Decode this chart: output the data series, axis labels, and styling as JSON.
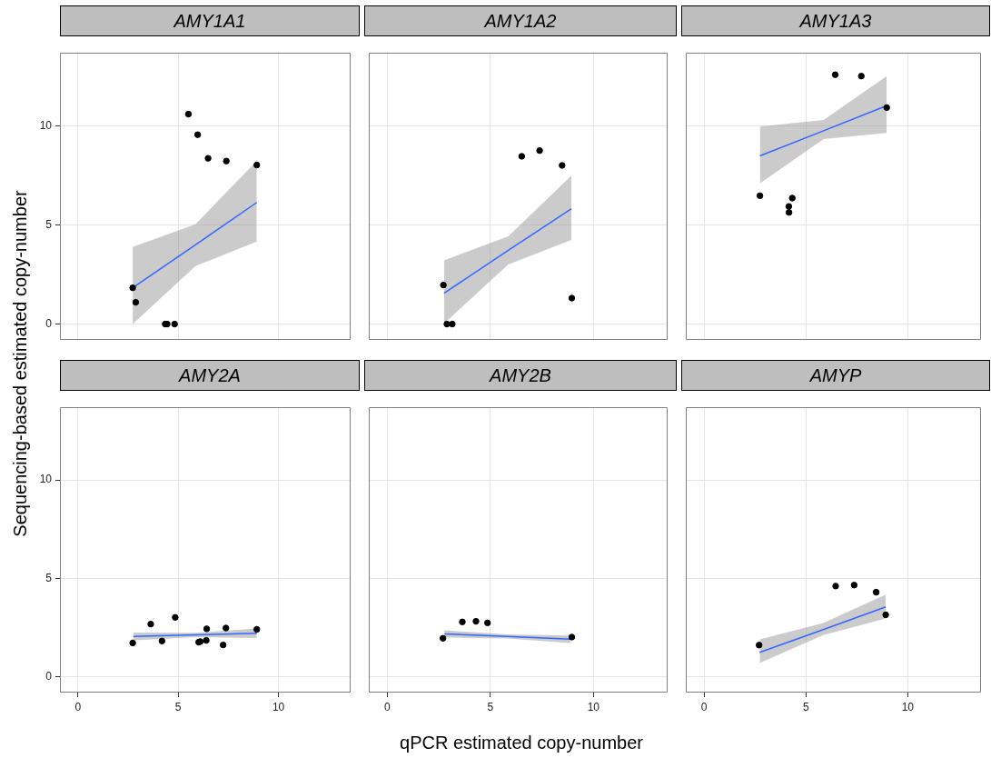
{
  "chart_data": [
    {
      "type": "scatter",
      "title": "AMY1A1",
      "ylabel": "Sequencing-based estimated copy-number",
      "xlim": [
        -0.9,
        13.6
      ],
      "ylim": [
        -0.8,
        13.7
      ],
      "xticks": [
        0,
        5,
        10
      ],
      "yticks": [
        0,
        5,
        10
      ],
      "grid": true,
      "marker": "circle",
      "tick_labels": "y",
      "series": [
        {
          "type": "scatter",
          "color": "#000000",
          "x": [
            5.51,
            5.97,
            6.49,
            7.4,
            8.92,
            2.73,
            2.88,
            4.35,
            4.45,
            4.82
          ],
          "values": [
            10.6,
            9.56,
            8.37,
            8.23,
            8.03,
            1.83,
            1.1,
            0,
            0,
            0
          ]
        },
        {
          "type": "line",
          "marker": "none",
          "color": "#3366ff",
          "x": [
            2.73,
            5.86,
            8.92
          ],
          "values": [
            1.83,
            4.0,
            6.14
          ],
          "lower": [
            0,
            2.93,
            4.17
          ],
          "upper": [
            3.89,
            5.04,
            8.24
          ]
        }
      ]
    },
    {
      "type": "scatter",
      "title": "AMY1A2",
      "xlim": [
        -0.9,
        13.6
      ],
      "ylim": [
        -0.8,
        13.7
      ],
      "xticks": [
        0,
        5,
        10
      ],
      "yticks": [
        0,
        5,
        10
      ],
      "grid": true,
      "marker": "circle",
      "tick_labels": false,
      "series": [
        {
          "type": "scatter",
          "color": "#000000",
          "x": [
            6.52,
            7.39,
            8.48,
            2.72,
            8.95,
            2.89,
            3.15
          ],
          "values": [
            8.47,
            8.76,
            8.01,
            1.97,
            1.31,
            0,
            0
          ]
        },
        {
          "type": "line",
          "marker": "none",
          "color": "#3366ff",
          "x": [
            2.75,
            5.87,
            8.93
          ],
          "values": [
            1.56,
            3.72,
            5.82
          ],
          "lower": [
            0.03,
            3.01,
            4.25
          ],
          "upper": [
            3.22,
            4.43,
            7.49
          ]
        }
      ]
    },
    {
      "type": "scatter",
      "title": "AMY1A3",
      "xlim": [
        -0.9,
        13.6
      ],
      "ylim": [
        -0.8,
        13.7
      ],
      "xticks": [
        0,
        5,
        10
      ],
      "yticks": [
        0,
        5,
        10
      ],
      "grid": true,
      "marker": "circle",
      "tick_labels": false,
      "series": [
        {
          "type": "scatter",
          "color": "#000000",
          "x": [
            6.44,
            7.72,
            8.97,
            2.74,
            4.33,
            4.16,
            4.17
          ],
          "values": [
            12.59,
            12.52,
            10.93,
            6.48,
            6.36,
            5.94,
            5.64
          ]
        },
        {
          "type": "line",
          "marker": "none",
          "color": "#3366ff",
          "x": [
            2.74,
            5.87,
            8.97
          ],
          "values": [
            8.49,
            9.76,
            11.03
          ],
          "lower": [
            7.1,
            9.34,
            9.65
          ],
          "upper": [
            9.97,
            10.3,
            12.52
          ]
        }
      ]
    },
    {
      "type": "scatter",
      "title": "AMY2A",
      "xlim": [
        -0.9,
        13.6
      ],
      "ylim": [
        -0.8,
        13.7
      ],
      "xticks": [
        0,
        5,
        10
      ],
      "yticks": [
        0,
        5,
        10
      ],
      "grid": true,
      "marker": "circle",
      "series": [
        {
          "type": "scatter",
          "color": "#000000",
          "x": [
            2.73,
            3.63,
            4.85,
            4.19,
            6.42,
            7.38,
            8.92,
            6.02,
            6.1,
            6.4,
            7.24
          ],
          "values": [
            1.72,
            2.68,
            3.02,
            1.82,
            2.44,
            2.48,
            2.41,
            1.76,
            1.79,
            1.85,
            1.62
          ]
        },
        {
          "type": "line",
          "marker": "none",
          "color": "#3366ff",
          "x": [
            2.76,
            5.84,
            8.92
          ],
          "values": [
            2.05,
            2.13,
            2.21
          ],
          "lower": [
            1.85,
            2.02,
            1.97
          ],
          "upper": [
            2.25,
            2.24,
            2.45
          ]
        }
      ]
    },
    {
      "type": "scatter",
      "title": "AMY2B",
      "xlabel": "qPCR estimated copy-number",
      "xlim": [
        -0.9,
        13.6
      ],
      "ylim": [
        -0.8,
        13.7
      ],
      "xticks": [
        0,
        5,
        10
      ],
      "yticks": [
        0,
        5,
        10
      ],
      "grid": true,
      "marker": "circle",
      "tick_labels": "x",
      "series": [
        {
          "type": "scatter",
          "color": "#000000",
          "x": [
            3.64,
            4.3,
            4.86,
            2.7,
            8.95
          ],
          "values": [
            2.79,
            2.82,
            2.74,
            1.96,
            2.02
          ]
        },
        {
          "type": "line",
          "marker": "none",
          "color": "#3366ff",
          "x": [
            2.77,
            5.83,
            8.89
          ],
          "values": [
            2.18,
            2.05,
            1.91
          ],
          "lower": [
            2.0,
            1.95,
            1.72
          ],
          "upper": [
            2.36,
            2.15,
            2.1
          ]
        }
      ]
    },
    {
      "type": "scatter",
      "title": "AMYP",
      "xlim": [
        -0.9,
        13.6
      ],
      "ylim": [
        -0.8,
        13.7
      ],
      "xticks": [
        0,
        5,
        10
      ],
      "yticks": [
        0,
        5,
        10
      ],
      "grid": true,
      "marker": "circle",
      "tick_labels": "x",
      "series": [
        {
          "type": "scatter",
          "color": "#000000",
          "x": [
            6.46,
            7.37,
            8.45,
            8.92,
            2.7
          ],
          "values": [
            4.61,
            4.66,
            4.3,
            3.15,
            1.61
          ]
        },
        {
          "type": "line",
          "marker": "none",
          "color": "#3366ff",
          "x": [
            2.73,
            5.82,
            8.92
          ],
          "values": [
            1.24,
            2.39,
            3.55
          ],
          "lower": [
            0.7,
            2.11,
            2.96
          ],
          "upper": [
            1.9,
            2.72,
            4.18
          ]
        }
      ]
    }
  ]
}
